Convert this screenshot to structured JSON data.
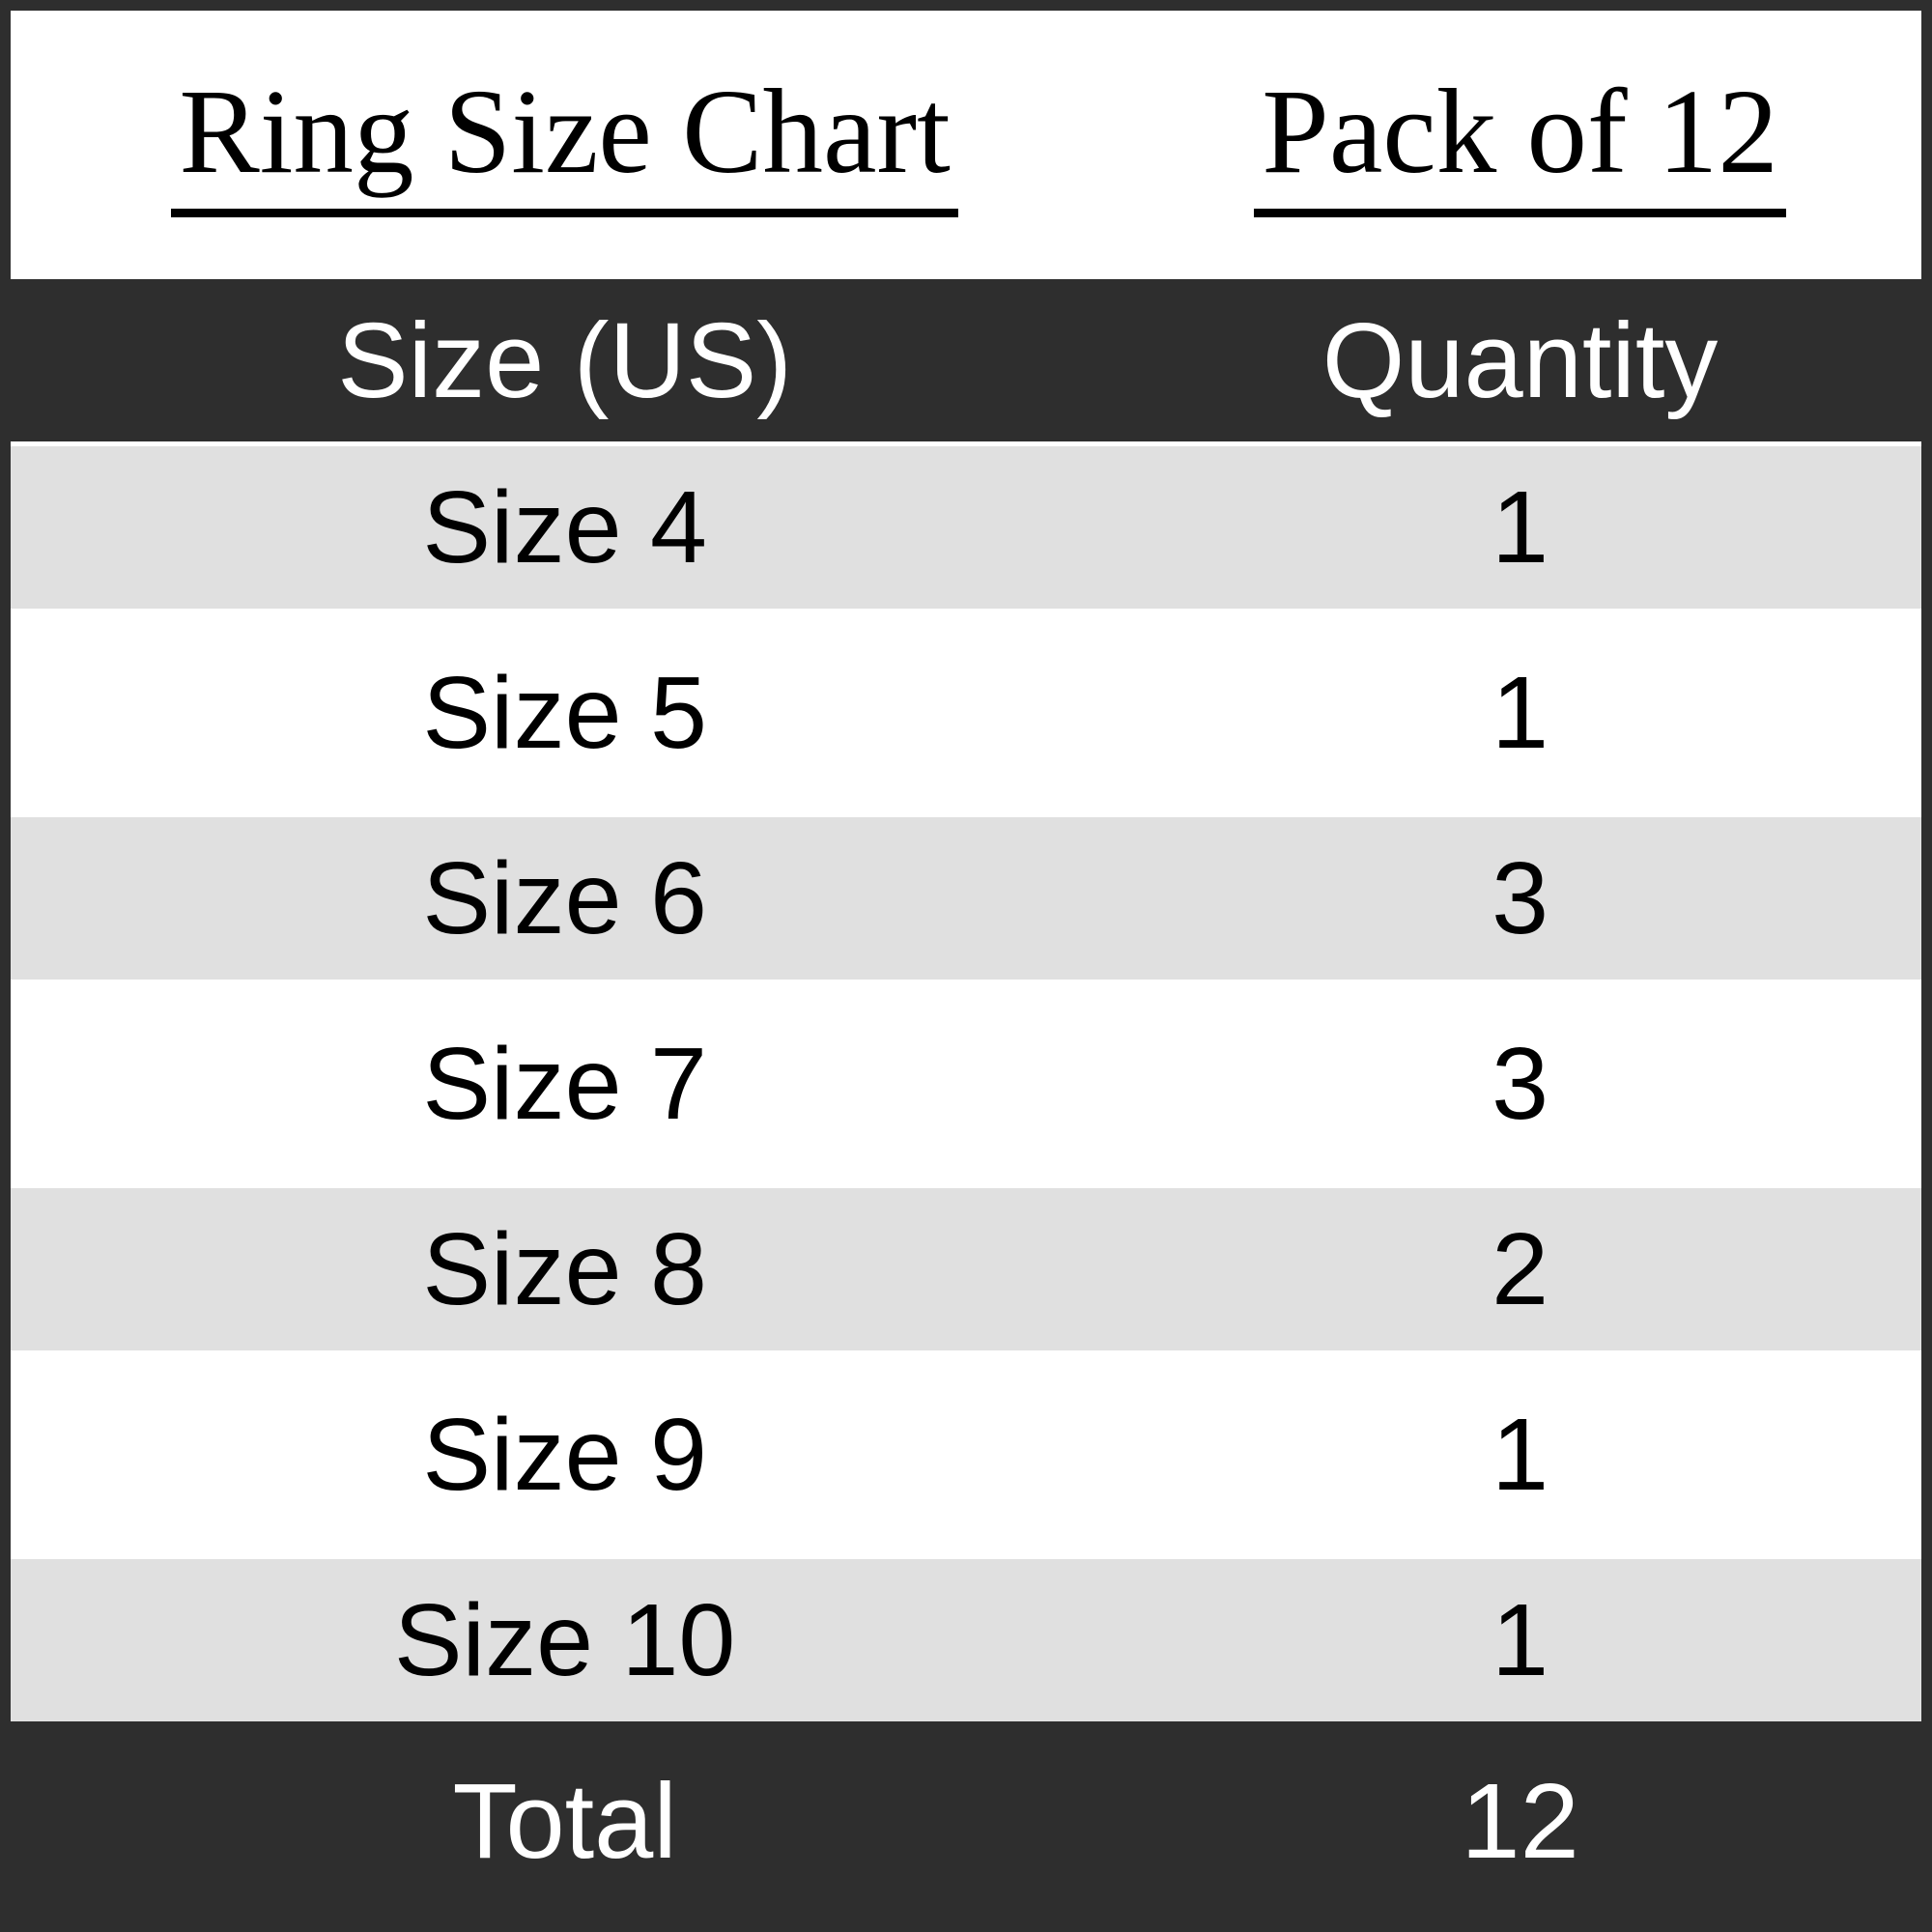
{
  "title_row": {
    "left": "Ring Size Chart",
    "right": "Pack of 12"
  },
  "table": {
    "columns": [
      "Size (US)",
      "Quantity"
    ],
    "rows": [
      {
        "size": "Size 4",
        "quantity": "1"
      },
      {
        "size": "Size 5",
        "quantity": "1"
      },
      {
        "size": "Size 6",
        "quantity": "3"
      },
      {
        "size": "Size 7",
        "quantity": "3"
      },
      {
        "size": "Size 8",
        "quantity": "2"
      },
      {
        "size": "Size 9",
        "quantity": "1"
      },
      {
        "size": "Size 10",
        "quantity": "1"
      }
    ],
    "total_label": "Total",
    "total_value": "12"
  },
  "colors": {
    "dark_band": "#2e2e2e",
    "stripe_gray": "#e0e0e0",
    "stripe_white": "#ffffff",
    "header_text": "#ffffff",
    "body_text": "#000000",
    "border": "#2e2e2e"
  },
  "chart_data": {
    "type": "table",
    "title": "Ring Size Chart",
    "subtitle": "Pack of 12",
    "columns": [
      "Size (US)",
      "Quantity"
    ],
    "categories": [
      "Size 4",
      "Size 5",
      "Size 6",
      "Size 7",
      "Size 8",
      "Size 9",
      "Size 10"
    ],
    "values": [
      1,
      1,
      3,
      3,
      2,
      1,
      1
    ],
    "total_label": "Total",
    "total": 12
  }
}
